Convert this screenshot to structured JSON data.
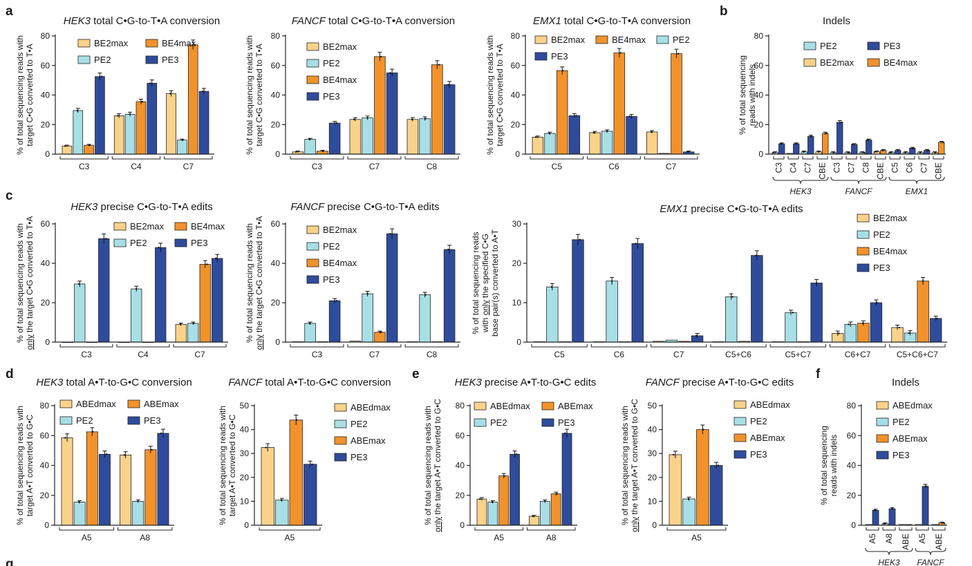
{
  "figure": {
    "colors": {
      "BE2max": "#fad28a",
      "BE4max": "#f2922b",
      "PE2": "#a8dfe6",
      "PE3": "#2f4c9c",
      "ABEdmax": "#fad28a",
      "ABEmax": "#f2922b"
    },
    "panel_letters": [
      "a",
      "b",
      "c",
      "d",
      "e",
      "f",
      "g"
    ]
  },
  "chart_data": [
    {
      "id": "a1",
      "type": "bar",
      "letter": "a",
      "title_italic": "HEK3",
      "title_rest": " total C•G-to-T•A conversion",
      "ylabel": [
        "% of total sequencing reads with",
        "target C•G converted to T•A"
      ],
      "ylim": [
        0,
        80
      ],
      "yticks": [
        0,
        20,
        40,
        60,
        80
      ],
      "categories": [
        "C3",
        "C4",
        "C7"
      ],
      "legend_cols": 2,
      "legend_order": [
        "BE2max",
        "BE4max",
        "PE2",
        "PE3"
      ],
      "series": [
        {
          "name": "BE2max",
          "values": [
            5.5,
            26,
            41
          ]
        },
        {
          "name": "PE2",
          "values": [
            29.5,
            27,
            9.5
          ]
        },
        {
          "name": "BE4max",
          "values": [
            6,
            35.5,
            74
          ]
        },
        {
          "name": "PE3",
          "values": [
            52.5,
            48,
            42.5
          ]
        }
      ]
    },
    {
      "id": "a2",
      "type": "bar",
      "title_italic": "FANCF",
      "title_rest": " total C•G-to-T•A conversion",
      "ylabel": [
        "% of total sequencing reads with",
        "target C•G converted to T•A"
      ],
      "ylim": [
        0,
        80
      ],
      "yticks": [
        0,
        20,
        40,
        60,
        80
      ],
      "categories": [
        "C3",
        "C7",
        "C8"
      ],
      "legend_cols": 1,
      "legend_order": [
        "BE2max",
        "PE2",
        "BE4max",
        "PE3"
      ],
      "series": [
        {
          "name": "BE2max",
          "values": [
            1.5,
            23.5,
            23.5
          ]
        },
        {
          "name": "PE2",
          "values": [
            10,
            24.5,
            24
          ]
        },
        {
          "name": "BE4max",
          "values": [
            2,
            66,
            60.5
          ]
        },
        {
          "name": "PE3",
          "values": [
            21,
            55,
            47
          ]
        }
      ]
    },
    {
      "id": "a3",
      "type": "bar",
      "title_italic": "EMX1",
      "title_rest": " total C•G-to-T•A conversion",
      "ylabel": [
        "% of total sequencing reads with",
        "target C•G converted to T•A"
      ],
      "ylim": [
        0,
        80
      ],
      "yticks": [
        0,
        20,
        40,
        60,
        80
      ],
      "categories": [
        "C5",
        "C6",
        "C7"
      ],
      "legend_cols": 3,
      "legend_order": [
        "BE2max",
        "BE4max",
        "PE2",
        "PE3"
      ],
      "series": [
        {
          "name": "BE2max",
          "values": [
            11.5,
            14.5,
            15
          ]
        },
        {
          "name": "PE2",
          "values": [
            14,
            15.5,
            0.5
          ]
        },
        {
          "name": "BE4max",
          "values": [
            56.5,
            68.5,
            68
          ]
        },
        {
          "name": "PE3",
          "values": [
            26,
            25.5,
            1.5
          ]
        }
      ]
    },
    {
      "id": "b",
      "type": "bar",
      "letter": "b",
      "title_plain": "Indels",
      "ylabel": [
        "% of total sequencing",
        "reads with indels"
      ],
      "ylim": [
        0,
        80
      ],
      "yticks": [
        0,
        20,
        40,
        60,
        80
      ],
      "categories": [
        "C3",
        "C4",
        "C7",
        "CBE",
        "C3",
        "C7",
        "C8",
        "CBE",
        "C5",
        "C6",
        "C7",
        "CBE"
      ],
      "group_labels": [
        "HEK3",
        "FANCF",
        "EMX1"
      ],
      "legend_cols": 2,
      "legend_order": [
        "PE2",
        "PE3",
        "BE2max",
        "BE4max"
      ],
      "series": [
        {
          "name": "BE2max",
          "values": [
            null,
            null,
            null,
            1.5,
            null,
            null,
            null,
            1.5,
            null,
            null,
            null,
            1
          ]
        },
        {
          "name": "PE2",
          "values": [
            1,
            0.5,
            1.5,
            null,
            1,
            1,
            1,
            null,
            1,
            1,
            1,
            null
          ]
        },
        {
          "name": "BE4max",
          "values": [
            null,
            null,
            null,
            14,
            null,
            null,
            null,
            2.5,
            null,
            null,
            null,
            8
          ]
        },
        {
          "name": "PE3",
          "values": [
            7,
            7,
            12,
            null,
            21.5,
            6.5,
            9.5,
            null,
            2.5,
            4,
            2.5,
            null
          ]
        }
      ]
    },
    {
      "id": "c1",
      "type": "bar",
      "letter": "c",
      "title_italic": "HEK3",
      "title_rest": " precise C•G-to-T•A edits",
      "ylabel": [
        "% of total sequencing reads with",
        "only the target C•G converted to T•A"
      ],
      "ylim": [
        0,
        60
      ],
      "yticks": [
        0,
        20,
        40,
        60
      ],
      "categories": [
        "C3",
        "C4",
        "C7"
      ],
      "legend_cols": 2,
      "legend_order": [
        "BE2max",
        "BE4max",
        "PE2",
        "PE3"
      ],
      "series": [
        {
          "name": "BE2max",
          "values": [
            0,
            0,
            9
          ]
        },
        {
          "name": "PE2",
          "values": [
            29.5,
            27,
            9.5
          ]
        },
        {
          "name": "BE4max",
          "values": [
            0,
            0,
            39.5
          ]
        },
        {
          "name": "PE3",
          "values": [
            52.5,
            48,
            42.5
          ]
        }
      ]
    },
    {
      "id": "c2",
      "type": "bar",
      "title_italic": "FANCF",
      "title_rest": " precise C•G-to-T•A edits",
      "ylabel": [
        "% of total sequencing reads with",
        "only the target C•G converted to T•A"
      ],
      "ylim": [
        0,
        60
      ],
      "yticks": [
        0,
        20,
        40,
        60
      ],
      "categories": [
        "C3",
        "C7",
        "C8"
      ],
      "legend_cols": 1,
      "legend_order": [
        "BE2max",
        "PE2",
        "BE4max",
        "PE3"
      ],
      "series": [
        {
          "name": "BE2max",
          "values": [
            0.2,
            0.5,
            0.2
          ]
        },
        {
          "name": "PE2",
          "values": [
            9.5,
            24.5,
            24
          ]
        },
        {
          "name": "BE4max",
          "values": [
            0.2,
            5,
            0.2
          ]
        },
        {
          "name": "PE3",
          "values": [
            21,
            55,
            47
          ]
        }
      ]
    },
    {
      "id": "c3",
      "type": "bar",
      "title_italic": "EMX1",
      "title_rest": " precise C•G-to-T•A edits",
      "ylabel": [
        "% of total sequencing reads",
        "with only the specified C•G",
        "base pair(s) converted to A•T"
      ],
      "ylim": [
        0,
        30
      ],
      "yticks": [
        0,
        10,
        20,
        30
      ],
      "categories": [
        "C5",
        "C6",
        "C7",
        "C5+C6",
        "C5+C7",
        "C6+C7",
        "C5+C6+C7"
      ],
      "legend_cols": 1,
      "legend_order": [
        "BE2max",
        "PE2",
        "BE4max",
        "PE3"
      ],
      "series": [
        {
          "name": "BE2max",
          "values": [
            0.1,
            0.1,
            0.2,
            0.1,
            0.1,
            2.2,
            3.7
          ]
        },
        {
          "name": "PE2",
          "values": [
            14,
            15.5,
            0.5,
            11.5,
            7.5,
            4.5,
            2.3
          ]
        },
        {
          "name": "BE4max",
          "values": [
            0.1,
            0.1,
            0.2,
            0.2,
            0.1,
            4.8,
            15.5
          ]
        },
        {
          "name": "PE3",
          "values": [
            26,
            25,
            1.6,
            22,
            15,
            10,
            6
          ]
        }
      ]
    },
    {
      "id": "d1",
      "type": "bar",
      "letter": "d",
      "title_italic": "HEK3",
      "title_rest": " total A•T-to-G•C conversion",
      "ylabel": [
        "% of total sequencing reads with",
        "target A•T converted to G•C"
      ],
      "ylim": [
        0,
        80
      ],
      "yticks": [
        0,
        20,
        40,
        60,
        80
      ],
      "categories": [
        "A5",
        "A8"
      ],
      "legend_cols": 2,
      "legend_order": [
        "ABEdmax",
        "ABEmax",
        "PE2",
        "PE3"
      ],
      "series": [
        {
          "name": "ABEdmax",
          "values": [
            58.5,
            47
          ]
        },
        {
          "name": "PE2",
          "values": [
            15.5,
            16
          ]
        },
        {
          "name": "ABEmax",
          "values": [
            62.5,
            50.5
          ]
        },
        {
          "name": "PE3",
          "values": [
            47.5,
            61.5
          ]
        }
      ]
    },
    {
      "id": "d2",
      "type": "bar",
      "title_italic": "FANCF",
      "title_rest": " total A•T-to-G•C conversion",
      "ylabel": [
        "% of total sequencing reads with",
        "target A•T converted to G•C"
      ],
      "ylim": [
        0,
        50
      ],
      "yticks": [
        0,
        10,
        20,
        30,
        40,
        50
      ],
      "categories": [
        "A5"
      ],
      "legend_cols": 1,
      "legend_order": [
        "ABEdmax",
        "PE2",
        "ABEmax",
        "PE3"
      ],
      "series": [
        {
          "name": "ABEdmax",
          "values": [
            32.5
          ]
        },
        {
          "name": "PE2",
          "values": [
            10.5
          ]
        },
        {
          "name": "ABEmax",
          "values": [
            44
          ]
        },
        {
          "name": "PE3",
          "values": [
            25.5
          ]
        }
      ]
    },
    {
      "id": "e1",
      "type": "bar",
      "letter": "e",
      "title_italic": "HEK3",
      "title_rest": " precise A•T-to-G•C edits",
      "ylabel": [
        "% of total sequencing reads with",
        "only the target A•T converted to G•C"
      ],
      "ylim": [
        0,
        80
      ],
      "yticks": [
        0,
        20,
        40,
        60,
        80
      ],
      "categories": [
        "A5",
        "A8"
      ],
      "legend_cols": 2,
      "legend_order": [
        "ABEdmax",
        "ABEmax",
        "PE2",
        "PE3"
      ],
      "series": [
        {
          "name": "ABEdmax",
          "values": [
            17.5,
            6
          ]
        },
        {
          "name": "PE2",
          "values": [
            15.5,
            16
          ]
        },
        {
          "name": "ABEmax",
          "values": [
            33,
            21
          ]
        },
        {
          "name": "PE3",
          "values": [
            47.5,
            61.5
          ]
        }
      ]
    },
    {
      "id": "e2",
      "type": "bar",
      "title_italic": "FANCF",
      "title_rest": " precise A•T-to-G•C edits",
      "ylabel": [
        "% of total sequencing reads with",
        "only the target A•T converted to G•C"
      ],
      "ylim": [
        0,
        50
      ],
      "yticks": [
        0,
        10,
        20,
        30,
        40,
        50
      ],
      "categories": [
        "A5"
      ],
      "legend_cols": 1,
      "legend_order": [
        "ABEdmax",
        "PE2",
        "ABEmax",
        "PE3"
      ],
      "series": [
        {
          "name": "ABEdmax",
          "values": [
            29.5
          ]
        },
        {
          "name": "PE2",
          "values": [
            11
          ]
        },
        {
          "name": "ABEmax",
          "values": [
            40
          ]
        },
        {
          "name": "PE3",
          "values": [
            25
          ]
        }
      ]
    },
    {
      "id": "f",
      "type": "bar",
      "letter": "f",
      "title_plain": "Indels",
      "ylabel": [
        "% of total sequencing",
        "reads with indels"
      ],
      "ylim": [
        0,
        80
      ],
      "yticks": [
        0,
        20,
        40,
        60,
        80
      ],
      "categories": [
        "A5",
        "A8",
        "ABE",
        "A5",
        "ABE"
      ],
      "group_labels": [
        "HEK3",
        "FANCF"
      ],
      "legend_cols": 1,
      "legend_order": [
        "ABEdmax",
        "PE2",
        "ABEmax",
        "PE3"
      ],
      "series": [
        {
          "name": "ABEdmax",
          "values": [
            null,
            null,
            0.5,
            null,
            0.5
          ]
        },
        {
          "name": "PE2",
          "values": [
            0.5,
            1,
            null,
            0.5,
            null
          ]
        },
        {
          "name": "ABEmax",
          "values": [
            null,
            null,
            0.5,
            null,
            1.5
          ]
        },
        {
          "name": "PE3",
          "values": [
            10,
            11,
            null,
            26,
            null
          ]
        }
      ]
    }
  ]
}
